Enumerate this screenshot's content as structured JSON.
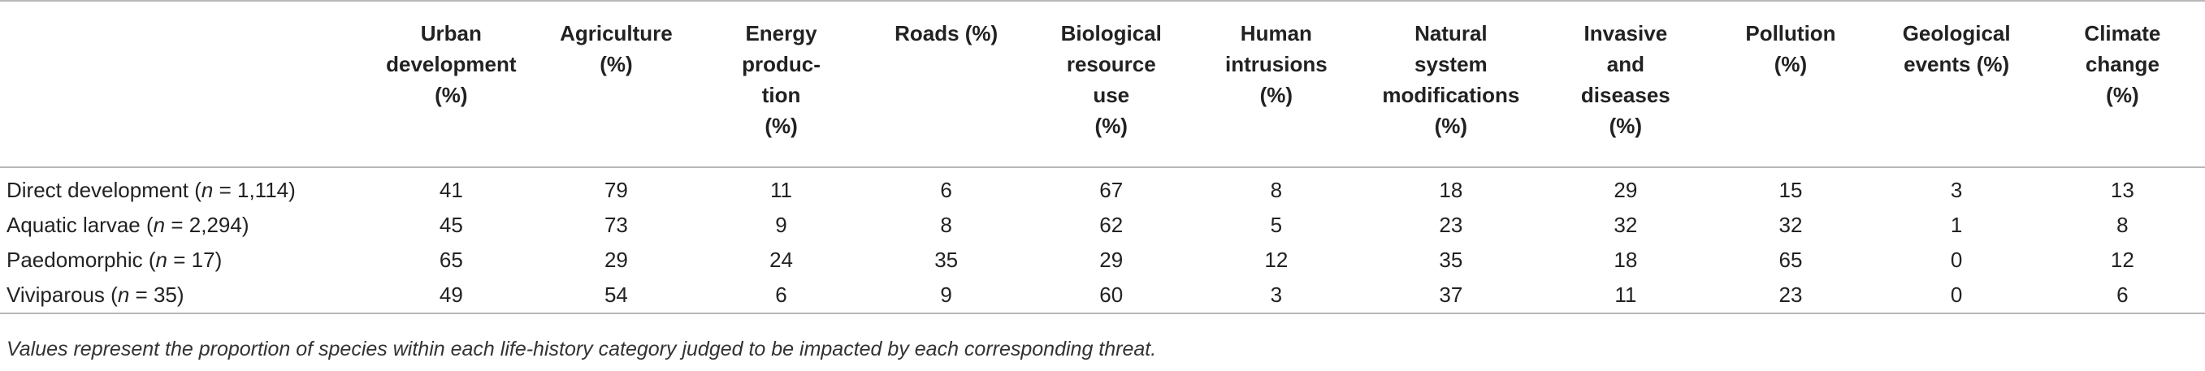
{
  "table": {
    "columns": [
      {
        "lines": [
          ""
        ]
      },
      {
        "lines": [
          "Urban",
          "development",
          "(%)"
        ]
      },
      {
        "lines": [
          "Agriculture",
          "(%)"
        ]
      },
      {
        "lines": [
          "Energy",
          "produc-",
          "tion",
          "(%)"
        ]
      },
      {
        "lines": [
          "Roads (%)"
        ]
      },
      {
        "lines": [
          "Biological",
          "resource",
          "use",
          "(%)"
        ]
      },
      {
        "lines": [
          "Human",
          "intrusions",
          "(%)"
        ]
      },
      {
        "lines": [
          "Natural",
          "system",
          "modifications",
          "(%)"
        ]
      },
      {
        "lines": [
          "Invasive",
          "and",
          "diseases",
          "(%)"
        ]
      },
      {
        "lines": [
          "Pollution",
          "(%)"
        ]
      },
      {
        "lines": [
          "Geological",
          "events (%)"
        ]
      },
      {
        "lines": [
          "Climate",
          "change",
          "(%)"
        ]
      }
    ],
    "rows": [
      {
        "label": "Direct development",
        "n_label": "n",
        "n_value": "= 1,114)",
        "values": [
          "41",
          "79",
          "11",
          "6",
          "67",
          "8",
          "18",
          "29",
          "15",
          "3",
          "13"
        ]
      },
      {
        "label": "Aquatic larvae",
        "n_label": "n",
        "n_value": "= 2,294)",
        "values": [
          "45",
          "73",
          "9",
          "8",
          "62",
          "5",
          "23",
          "32",
          "32",
          "1",
          "8"
        ]
      },
      {
        "label": "Paedomorphic",
        "n_label": "n",
        "n_value": "= 17)",
        "values": [
          "65",
          "29",
          "24",
          "35",
          "29",
          "12",
          "35",
          "18",
          "65",
          "0",
          "12"
        ]
      },
      {
        "label": "Viviparous",
        "n_label": "n",
        "n_value": "= 35)",
        "values": [
          "49",
          "54",
          "6",
          "9",
          "60",
          "3",
          "37",
          "11",
          "23",
          "0",
          "6"
        ]
      }
    ]
  },
  "footnote": "Values represent the proportion of species within each life-history category judged to be impacted by each corresponding threat."
}
